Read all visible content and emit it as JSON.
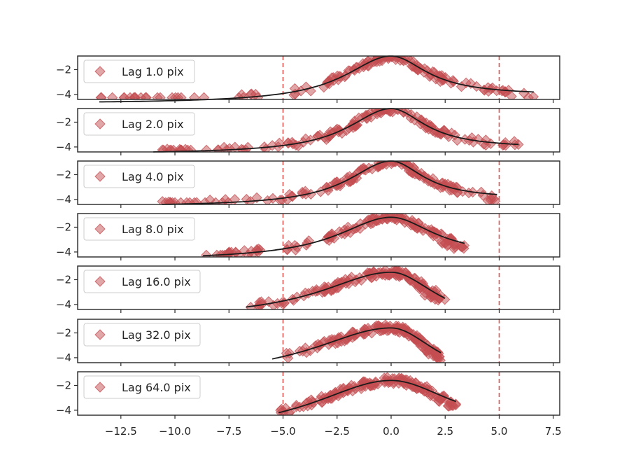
{
  "chart_data": {
    "type": "scatter",
    "layout": "7 stacked panels sharing the x axis",
    "marker": "diamond",
    "colors": {
      "points": "#c44e52",
      "fit": "#1a1a1a",
      "vline": "#d9534f",
      "axes": "#262626"
    },
    "xlim": [
      -14.5,
      7.8
    ],
    "xticks": [
      -12.5,
      -10.0,
      -7.5,
      -5.0,
      -2.5,
      0.0,
      2.5,
      5.0,
      7.5
    ],
    "xtick_labels": [
      "−12.5",
      "−10.0",
      "−7.5",
      "−5.0",
      "−2.5",
      "0.0",
      "2.5",
      "5.0",
      "7.5"
    ],
    "ylim": [
      -4.4,
      -0.9
    ],
    "yticks": [
      -2,
      -4
    ],
    "ytick_labels": [
      "−2",
      "−4"
    ],
    "vlines": [
      -5.0,
      5.0
    ],
    "legend_position": "upper-left",
    "panels": [
      {
        "legend": "Lag 1.0 pix",
        "xmin": -13.5,
        "xmax": 6.6,
        "fit_peak": -0.9,
        "fit_left_end": -4.6,
        "fit_right_end": -3.8,
        "left_width": 2.6,
        "right_width": 2.0
      },
      {
        "legend": "Lag 2.0 pix",
        "xmin": -11.0,
        "xmax": 5.9,
        "fit_peak": -0.9,
        "fit_left_end": -4.4,
        "fit_right_end": -3.8,
        "left_width": 2.4,
        "right_width": 1.9
      },
      {
        "legend": "Lag 4.0 pix",
        "xmin": -10.6,
        "xmax": 4.9,
        "fit_peak": -0.9,
        "fit_left_end": -4.4,
        "fit_right_end": -3.6,
        "left_width": 2.4,
        "right_width": 1.8
      },
      {
        "legend": "Lag 8.0 pix",
        "xmin": -8.7,
        "xmax": 3.4,
        "fit_peak": -1.2,
        "fit_left_end": -4.3,
        "fit_right_end": -3.3,
        "left_width": 3.0,
        "right_width": 2.4
      },
      {
        "legend": "Lag 16.0 pix",
        "xmin": -6.7,
        "xmax": 2.5,
        "fit_peak": -1.4,
        "fit_left_end": -4.2,
        "fit_right_end": -3.5,
        "left_width": 4.0,
        "right_width": 2.6
      },
      {
        "legend": "Lag 32.0 pix",
        "xmin": -5.5,
        "xmax": 2.3,
        "fit_peak": -1.6,
        "fit_left_end": -4.1,
        "fit_right_end": -3.6,
        "left_width": 4.5,
        "right_width": 2.6
      },
      {
        "legend": "Lag 64.0 pix",
        "xmin": -5.2,
        "xmax": 3.0,
        "fit_peak": -1.6,
        "fit_left_end": -4.2,
        "fit_right_end": -3.3,
        "left_width": 4.5,
        "right_width": 3.5
      }
    ]
  }
}
